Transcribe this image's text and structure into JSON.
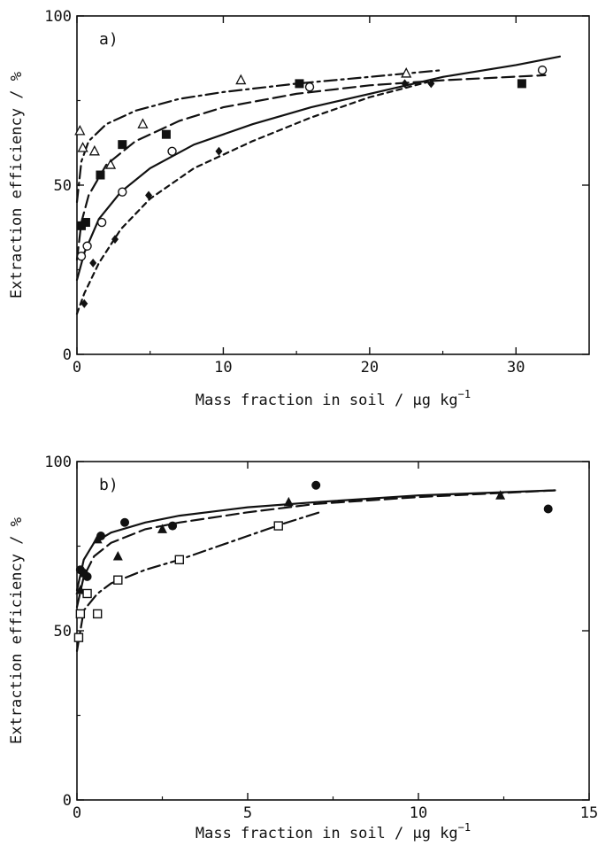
{
  "chart_data": [
    {
      "type": "scatter",
      "panel_label": "a)",
      "xlabel": "Mass fraction in soil / µg kg",
      "xlabel_sup": "−1",
      "ylabel": "Extraction efficiency / %",
      "xlim": [
        0,
        35
      ],
      "ylim": [
        0,
        100
      ],
      "xticks": [
        "0",
        "10",
        "20",
        "30"
      ],
      "yticks": [
        "0",
        "50",
        "100"
      ],
      "series": [
        {
          "marker": "open-triangle",
          "dash": "dashdot",
          "points": [
            [
              0.2,
              66
            ],
            [
              0.4,
              61
            ],
            [
              1.2,
              60
            ],
            [
              2.3,
              56
            ],
            [
              4.5,
              68
            ],
            [
              11.2,
              81
            ],
            [
              22.5,
              83
            ]
          ],
          "curve": [
            [
              0,
              45
            ],
            [
              0.3,
              57
            ],
            [
              0.8,
              63
            ],
            [
              2,
              68
            ],
            [
              4,
              72
            ],
            [
              7,
              75.5
            ],
            [
              10,
              77.5
            ],
            [
              15,
              80
            ],
            [
              20,
              82
            ],
            [
              25,
              84
            ]
          ]
        },
        {
          "marker": "filled-square",
          "dash": "dashed",
          "points": [
            [
              0.3,
              38
            ],
            [
              0.6,
              39
            ],
            [
              1.6,
              53
            ],
            [
              3.1,
              62
            ],
            [
              6.1,
              65
            ],
            [
              15.2,
              80
            ],
            [
              30.4,
              80
            ]
          ],
          "curve": [
            [
              0,
              28
            ],
            [
              0.3,
              39
            ],
            [
              0.8,
              47
            ],
            [
              2,
              56
            ],
            [
              4,
              63
            ],
            [
              7,
              69
            ],
            [
              10,
              73
            ],
            [
              15,
              77
            ],
            [
              20,
              79.5
            ],
            [
              25,
              81
            ],
            [
              32,
              82.5
            ]
          ]
        },
        {
          "marker": "open-circle",
          "dash": "solid",
          "points": [
            [
              0.3,
              29
            ],
            [
              0.7,
              32
            ],
            [
              1.7,
              39
            ],
            [
              3.1,
              48
            ],
            [
              6.5,
              60
            ],
            [
              15.9,
              79
            ],
            [
              31.8,
              84
            ]
          ],
          "curve": [
            [
              0,
              22
            ],
            [
              0.5,
              30
            ],
            [
              1.5,
              40
            ],
            [
              3,
              48
            ],
            [
              5,
              55
            ],
            [
              8,
              62
            ],
            [
              12,
              68
            ],
            [
              16,
              73
            ],
            [
              20,
              77
            ],
            [
              25,
              82
            ],
            [
              30,
              85.5
            ],
            [
              33,
              88
            ]
          ]
        },
        {
          "marker": "filled-diamond",
          "dash": "dotted",
          "points": [
            [
              0.5,
              15
            ],
            [
              1.1,
              27
            ],
            [
              2.6,
              34
            ],
            [
              4.9,
              47
            ],
            [
              9.7,
              60
            ],
            [
              22.4,
              80
            ],
            [
              24.2,
              80
            ]
          ],
          "curve": [
            [
              0,
              12
            ],
            [
              0.5,
              18
            ],
            [
              1.5,
              27
            ],
            [
              3,
              37
            ],
            [
              5,
              46
            ],
            [
              8,
              55
            ],
            [
              12,
              63
            ],
            [
              16,
              70
            ],
            [
              20,
              76
            ],
            [
              24,
              80.5
            ]
          ]
        }
      ]
    },
    {
      "type": "scatter",
      "panel_label": "b)",
      "xlabel": "Mass fraction in soil / µg kg",
      "xlabel_sup": "−1",
      "ylabel": "Extraction efficiency / %",
      "xlim": [
        0,
        15
      ],
      "ylim": [
        0,
        100
      ],
      "xticks": [
        "0",
        "5",
        "10",
        "15"
      ],
      "yticks": [
        "0",
        "50",
        "100"
      ],
      "series": [
        {
          "marker": "filled-circle",
          "dash": "solid",
          "points": [
            [
              0.1,
              68
            ],
            [
              0.2,
              67
            ],
            [
              0.3,
              66
            ],
            [
              0.7,
              78
            ],
            [
              1.4,
              82
            ],
            [
              2.8,
              81
            ],
            [
              7,
              93
            ],
            [
              13.8,
              86
            ]
          ],
          "curve": [
            [
              0,
              62
            ],
            [
              0.2,
              71
            ],
            [
              0.5,
              76
            ],
            [
              1,
              79
            ],
            [
              2,
              82
            ],
            [
              3,
              84
            ],
            [
              5,
              86.5
            ],
            [
              7,
              88
            ],
            [
              10,
              90
            ],
            [
              14,
              91.5
            ]
          ]
        },
        {
          "marker": "filled-triangle",
          "dash": "dashed",
          "points": [
            [
              0.1,
              62
            ],
            [
              0.2,
              67
            ],
            [
              0.6,
              77
            ],
            [
              1.2,
              72
            ],
            [
              2.5,
              80
            ],
            [
              6.2,
              88
            ],
            [
              12.4,
              90
            ]
          ],
          "curve": [
            [
              0,
              57
            ],
            [
              0.2,
              66
            ],
            [
              0.5,
              72
            ],
            [
              1,
              76
            ],
            [
              2,
              80
            ],
            [
              3,
              82
            ],
            [
              5,
              85
            ],
            [
              7,
              87.5
            ],
            [
              10,
              89.5
            ],
            [
              14,
              91.5
            ]
          ]
        },
        {
          "marker": "open-square",
          "dash": "dashdot",
          "points": [
            [
              0.05,
              48
            ],
            [
              0.1,
              55
            ],
            [
              0.3,
              61
            ],
            [
              0.6,
              55
            ],
            [
              1.2,
              65
            ],
            [
              3,
              71
            ],
            [
              5.9,
              81
            ]
          ],
          "curve": [
            [
              0,
              44
            ],
            [
              0.2,
              56
            ],
            [
              0.6,
              61
            ],
            [
              1,
              64
            ],
            [
              2,
              68
            ],
            [
              3,
              71
            ],
            [
              4,
              74.5
            ],
            [
              5,
              78
            ],
            [
              6,
              81.5
            ],
            [
              7.1,
              85
            ]
          ]
        }
      ]
    }
  ]
}
